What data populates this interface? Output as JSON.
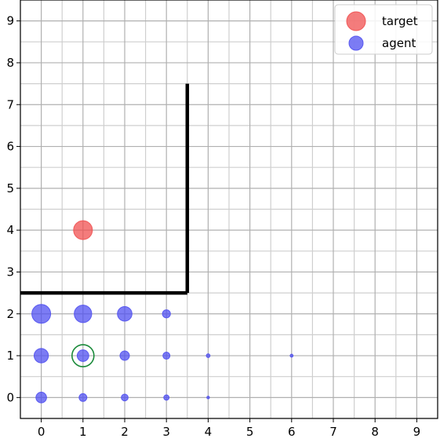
{
  "chart_data": {
    "type": "scatter",
    "title": "",
    "xlabel": "",
    "ylabel": "",
    "xlim": [
      -0.5,
      9.5
    ],
    "ylim": [
      -0.5,
      9.5
    ],
    "grid": true,
    "minor_grid": true,
    "x_ticks": [
      "0",
      "1",
      "2",
      "3",
      "4",
      "5",
      "6",
      "7",
      "8",
      "9"
    ],
    "y_ticks": [
      "0",
      "1",
      "2",
      "3",
      "4",
      "5",
      "6",
      "7",
      "8",
      "9"
    ],
    "legend": {
      "position": "top-right",
      "entries": [
        {
          "label": "target",
          "color": "#f05050"
        },
        {
          "label": "agent",
          "color": "#5050f0"
        }
      ]
    },
    "series": [
      {
        "name": "target",
        "color": "#f05050",
        "points": [
          {
            "x": 1,
            "y": 4,
            "weight": 1.0
          }
        ]
      },
      {
        "name": "agent",
        "color": "#5050f0",
        "points": [
          {
            "x": 0,
            "y": 2,
            "weight": 1.0
          },
          {
            "x": 1,
            "y": 2,
            "weight": 0.86
          },
          {
            "x": 2,
            "y": 2,
            "weight": 0.6
          },
          {
            "x": 3,
            "y": 2,
            "weight": 0.18
          },
          {
            "x": 0,
            "y": 1,
            "weight": 0.58
          },
          {
            "x": 1,
            "y": 1,
            "weight": 0.38
          },
          {
            "x": 2,
            "y": 1,
            "weight": 0.25
          },
          {
            "x": 3,
            "y": 1,
            "weight": 0.14
          },
          {
            "x": 4,
            "y": 1,
            "weight": 0.04
          },
          {
            "x": 6,
            "y": 1,
            "weight": 0.025
          },
          {
            "x": 0,
            "y": 0,
            "weight": 0.32
          },
          {
            "x": 1,
            "y": 0,
            "weight": 0.17
          },
          {
            "x": 2,
            "y": 0,
            "weight": 0.13
          },
          {
            "x": 3,
            "y": 0,
            "weight": 0.08
          },
          {
            "x": 4,
            "y": 0,
            "weight": 0.02
          }
        ]
      }
    ],
    "highlight": {
      "x": 1,
      "y": 1,
      "color": "#1a8a3a"
    },
    "walls": [
      {
        "points": [
          [
            -0.5,
            2.5
          ],
          [
            3.5,
            2.5
          ]
        ]
      },
      {
        "points": [
          [
            3.5,
            2.5
          ],
          [
            3.5,
            7.5
          ]
        ]
      }
    ]
  }
}
